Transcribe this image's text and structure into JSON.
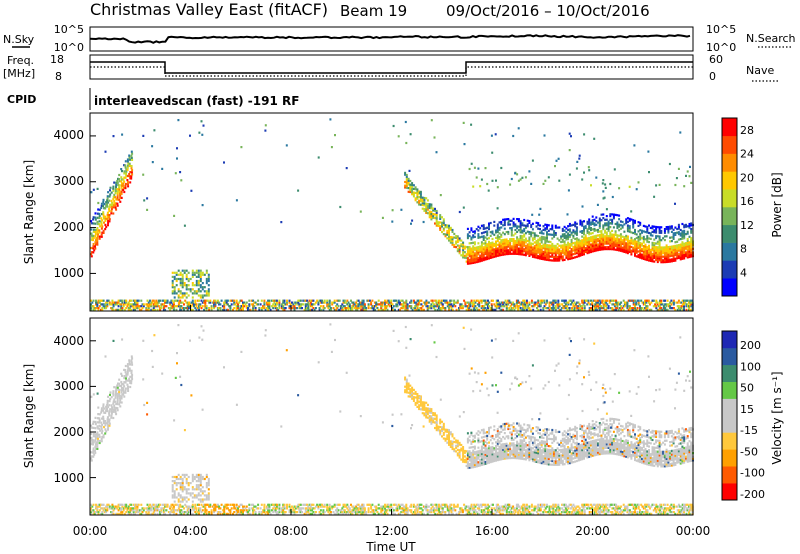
{
  "header": {
    "title": "Christmas Valley East (fitACF)",
    "beam": "Beam 19",
    "dates": "09/Oct/2016 – 10/Oct/2016"
  },
  "summary": {
    "nsky_label": "N.Sky",
    "nsearch_label": "N.Search",
    "log_ticks": [
      "10^5",
      "10^0"
    ],
    "freq_label": [
      "Freq.",
      "[MHz]"
    ],
    "freq_ticks": [
      "18",
      "8"
    ],
    "nave_label": "Nave",
    "nave_ticks": [
      "60",
      "0"
    ],
    "cpid_label": "CPID",
    "cpid_text": "interleavedscan (fast) -191 RF"
  },
  "colors": {
    "power_scale": [
      "#0000ff",
      "#1c3cb4",
      "#2a78a0",
      "#3c8c6e",
      "#78b45a",
      "#c8dc28",
      "#ffc800",
      "#ff8c00",
      "#ff4b00",
      "#ff0000"
    ],
    "velocity_scale": [
      "#ff0000",
      "#ff5a00",
      "#ffa000",
      "#ffc83c",
      "#c8c8c8",
      "#c8c8c8",
      "#64c846",
      "#3c8c6e",
      "#2a5aa0",
      "#1e28b4"
    ]
  },
  "chart_data": [
    {
      "type": "heatmap",
      "name": "power",
      "ylabel": "Slant Range [km]",
      "xlabel": "",
      "xlim": [
        "00:00",
        "24:00"
      ],
      "ylim": [
        180,
        4500
      ],
      "yticks": [
        "1000",
        "2000",
        "3000",
        "4000"
      ],
      "colorbar_label": "Power [dB]",
      "colorbar_ticks": [
        "4",
        "8",
        "12",
        "16",
        "20",
        "24",
        "28"
      ],
      "colorbar_range": [
        0,
        30
      ],
      "features": [
        {
          "time": [
            0.0,
            1.6
          ],
          "range_start_km": [
            1550,
            3200
          ],
          "peak_db": 26
        },
        {
          "time": [
            3.2,
            4.8
          ],
          "range_start_km": [
            600,
            1000
          ],
          "peak_db": 18
        },
        {
          "time": [
            12.5,
            15.0
          ],
          "range_start_km": [
            2800,
            1200
          ],
          "peak_db": 24
        },
        {
          "time": [
            15.0,
            24.0
          ],
          "range_start_km": [
            1550,
            1500
          ],
          "peak_db": 28
        }
      ]
    },
    {
      "type": "heatmap",
      "name": "velocity",
      "ylabel": "Slant Range [km]",
      "xlabel": "Time UT",
      "xlim": [
        "00:00",
        "24:00"
      ],
      "ylim": [
        180,
        4500
      ],
      "xticks": [
        "00:00",
        "04:00",
        "08:00",
        "12:00",
        "16:00",
        "20:00",
        "00:00"
      ],
      "yticks": [
        "1000",
        "2000",
        "3000",
        "4000"
      ],
      "colorbar_label": "Velocity [m s⁻¹]",
      "colorbar_ticks": [
        "200",
        "100",
        "50",
        "15",
        "-15",
        "-50",
        "-100",
        "-200"
      ],
      "colorbar_range": [
        -250,
        250
      ]
    }
  ]
}
